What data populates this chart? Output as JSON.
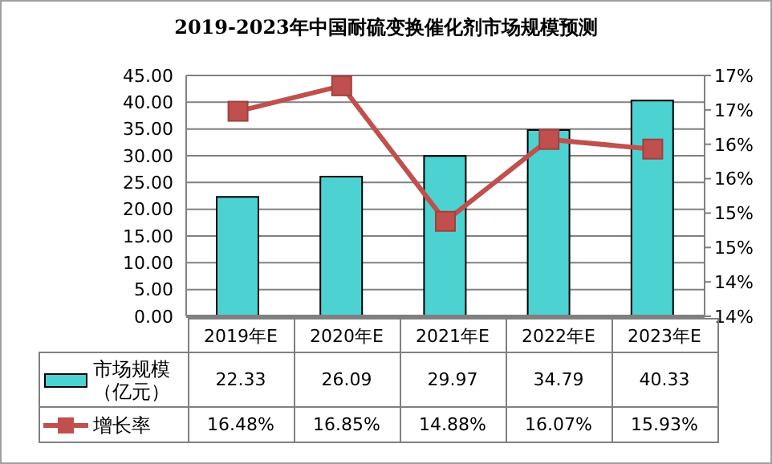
{
  "chart_data": {
    "type": "bar",
    "title": "2019-2023年中国耐硫变换催化剂市场规模预测",
    "categories": [
      "2019年E",
      "2020年E",
      "2021年E",
      "2022年E",
      "2023年E"
    ],
    "series": [
      {
        "name": "市场规模（亿元）",
        "color": "#4dd2d2",
        "values": [
          22.33,
          26.09,
          29.97,
          34.79,
          40.33
        ],
        "value_labels": [
          "22.33",
          "26.09",
          "29.97",
          "34.79",
          "40.33"
        ]
      },
      {
        "name": "增长率",
        "type": "line",
        "axis": "y2",
        "color": "#c0504d",
        "marker": "square",
        "values": [
          16.48,
          16.85,
          14.88,
          16.07,
          15.93
        ],
        "value_labels": [
          "16.48%",
          "16.85%",
          "14.88%",
          "16.07%",
          "15.93%"
        ]
      }
    ],
    "ylim": [
      0,
      45
    ],
    "yticks": [
      {
        "value": 0,
        "label": "0.00"
      },
      {
        "value": 5,
        "label": "5.00"
      },
      {
        "value": 10,
        "label": "10.00"
      },
      {
        "value": 15,
        "label": "15.00"
      },
      {
        "value": 20,
        "label": "20.00"
      },
      {
        "value": 25,
        "label": "25.00"
      },
      {
        "value": 30,
        "label": "30.00"
      },
      {
        "value": 35,
        "label": "35.00"
      },
      {
        "value": 40,
        "label": "40.00"
      },
      {
        "value": 45,
        "label": "45.00"
      }
    ],
    "y2lim": [
      13.5,
      17
    ],
    "y2ticks": [
      {
        "value": 13.5,
        "label": "14%"
      },
      {
        "value": 14,
        "label": "14%"
      },
      {
        "value": 14.5,
        "label": "15%"
      },
      {
        "value": 15,
        "label": "15%"
      },
      {
        "value": 15.5,
        "label": "16%"
      },
      {
        "value": 16,
        "label": "16%"
      },
      {
        "value": 16.5,
        "label": "17%"
      },
      {
        "value": 17,
        "label": "17%"
      }
    ],
    "grid": "y",
    "legend": "bottom"
  }
}
